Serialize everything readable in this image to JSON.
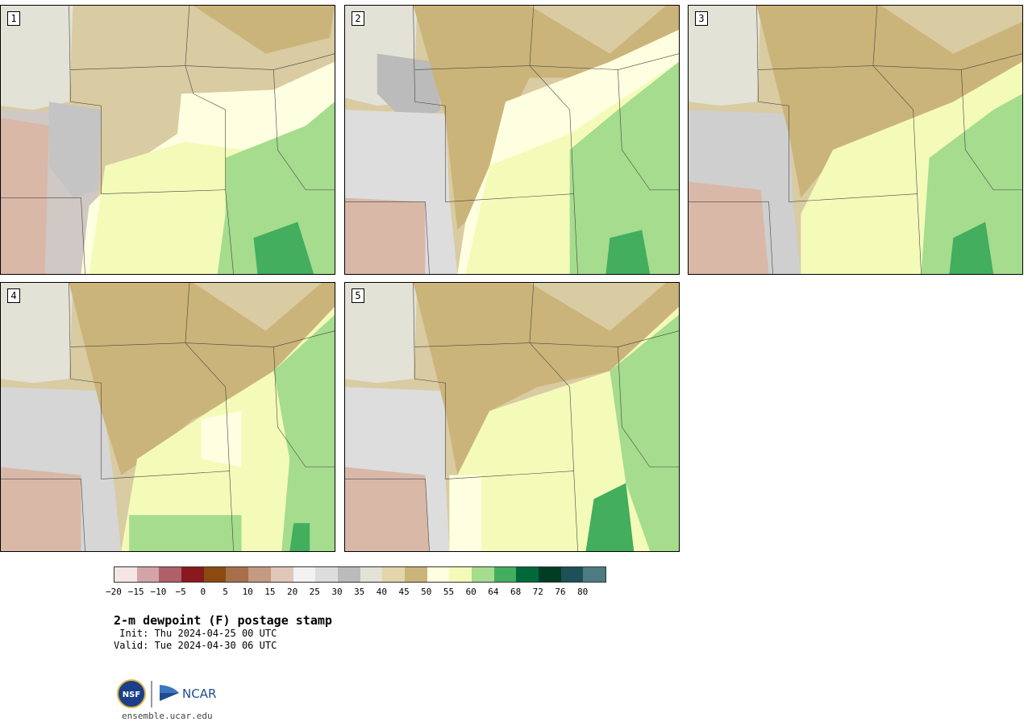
{
  "product_title": "2-m dewpoint (F) postage stamp",
  "init_line": " Init: Thu 2024-04-25 00 UTC",
  "valid_line": "Valid: Tue 2024-04-30 06 UTC",
  "website": "ensemble.ucar.edu",
  "logo_text": {
    "nsf": "NSF",
    "ncar": "NCAR"
  },
  "members": [
    {
      "label": "1"
    },
    {
      "label": "2"
    },
    {
      "label": "3"
    },
    {
      "label": "4"
    },
    {
      "label": "5"
    }
  ],
  "colorbar": {
    "tick_labels": [
      "−20",
      "−15",
      "−10",
      "−5",
      "0",
      "5",
      "10",
      "15",
      "20",
      "25",
      "30",
      "35",
      "40",
      "45",
      "50",
      "55",
      "60",
      "64",
      "68",
      "72",
      "76",
      "80"
    ],
    "colors": [
      "#f5e6e6",
      "#d4a3a8",
      "#b06068",
      "#881a1f",
      "#8b4a10",
      "#a8704a",
      "#c49a80",
      "#e0c7b8",
      "#f2f2f2",
      "#dddddd",
      "#bbbbbb",
      "#e3e2d6",
      "#e3d5ac",
      "#cbb47a",
      "#fefee0",
      "#f4fbb8",
      "#a5dc8d",
      "#42ae5e",
      "#00693a",
      "#003d25",
      "#1d5058",
      "#4e7b82"
    ]
  }
}
